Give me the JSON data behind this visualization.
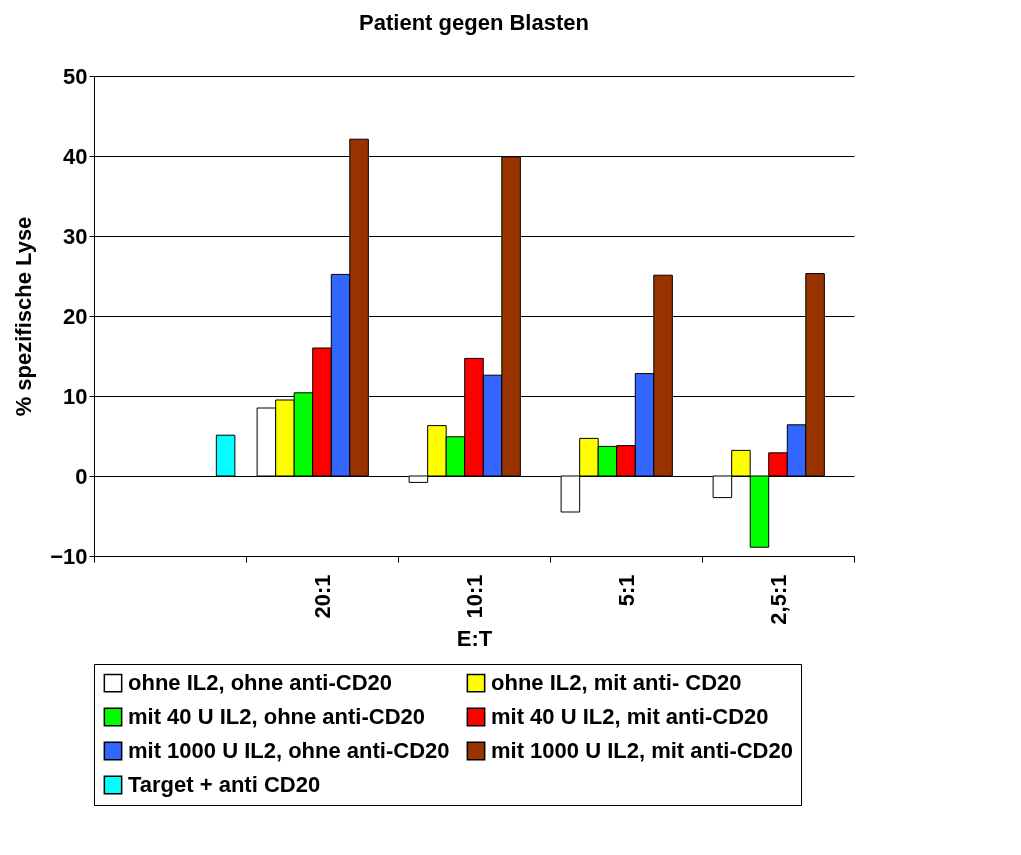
{
  "chart_data": {
    "type": "bar",
    "title": "Patient gegen Blasten",
    "xlabel": "E:T",
    "ylabel": "% spezifische Lyse",
    "categories": [
      null,
      "20:1",
      "10:1",
      "5:1",
      "2,5:1"
    ],
    "series": [
      {
        "name": "ohne IL2, ohne anti-CD20",
        "color": "#ffffff",
        "values": [
          null,
          8.5,
          -0.8,
          -4.5,
          -2.7
        ]
      },
      {
        "name": "ohne IL2, mit anti- CD20",
        "color": "#ffff00",
        "values": [
          null,
          9.5,
          6.3,
          4.7,
          3.2
        ]
      },
      {
        "name": "mit 40 U IL2, ohne anti-CD20",
        "color": "#00ff00",
        "values": [
          null,
          10.4,
          4.9,
          3.7,
          -8.9
        ]
      },
      {
        "name": "mit 40 U IL2, mit anti-CD20",
        "color": "#ff0000",
        "values": [
          null,
          16,
          14.7,
          3.8,
          2.9
        ]
      },
      {
        "name": "mit 1000 U IL2, ohne anti-CD20",
        "color": "#3366ff",
        "values": [
          null,
          25.2,
          12.6,
          12.8,
          6.4
        ]
      },
      {
        "name": "mit 1000 U IL2, mit anti-CD20",
        "color": "#993300",
        "values": [
          null,
          42.1,
          39.9,
          25.1,
          25.3
        ]
      },
      {
        "name": "Target + anti CD20",
        "color": "#00ffff",
        "values": [
          5.1,
          null,
          null,
          null,
          null
        ]
      }
    ],
    "ylim": [
      -10,
      50
    ],
    "yticks": [
      -10,
      0,
      10,
      20,
      30,
      40,
      50
    ],
    "grid": "y",
    "legend": "bottom"
  }
}
